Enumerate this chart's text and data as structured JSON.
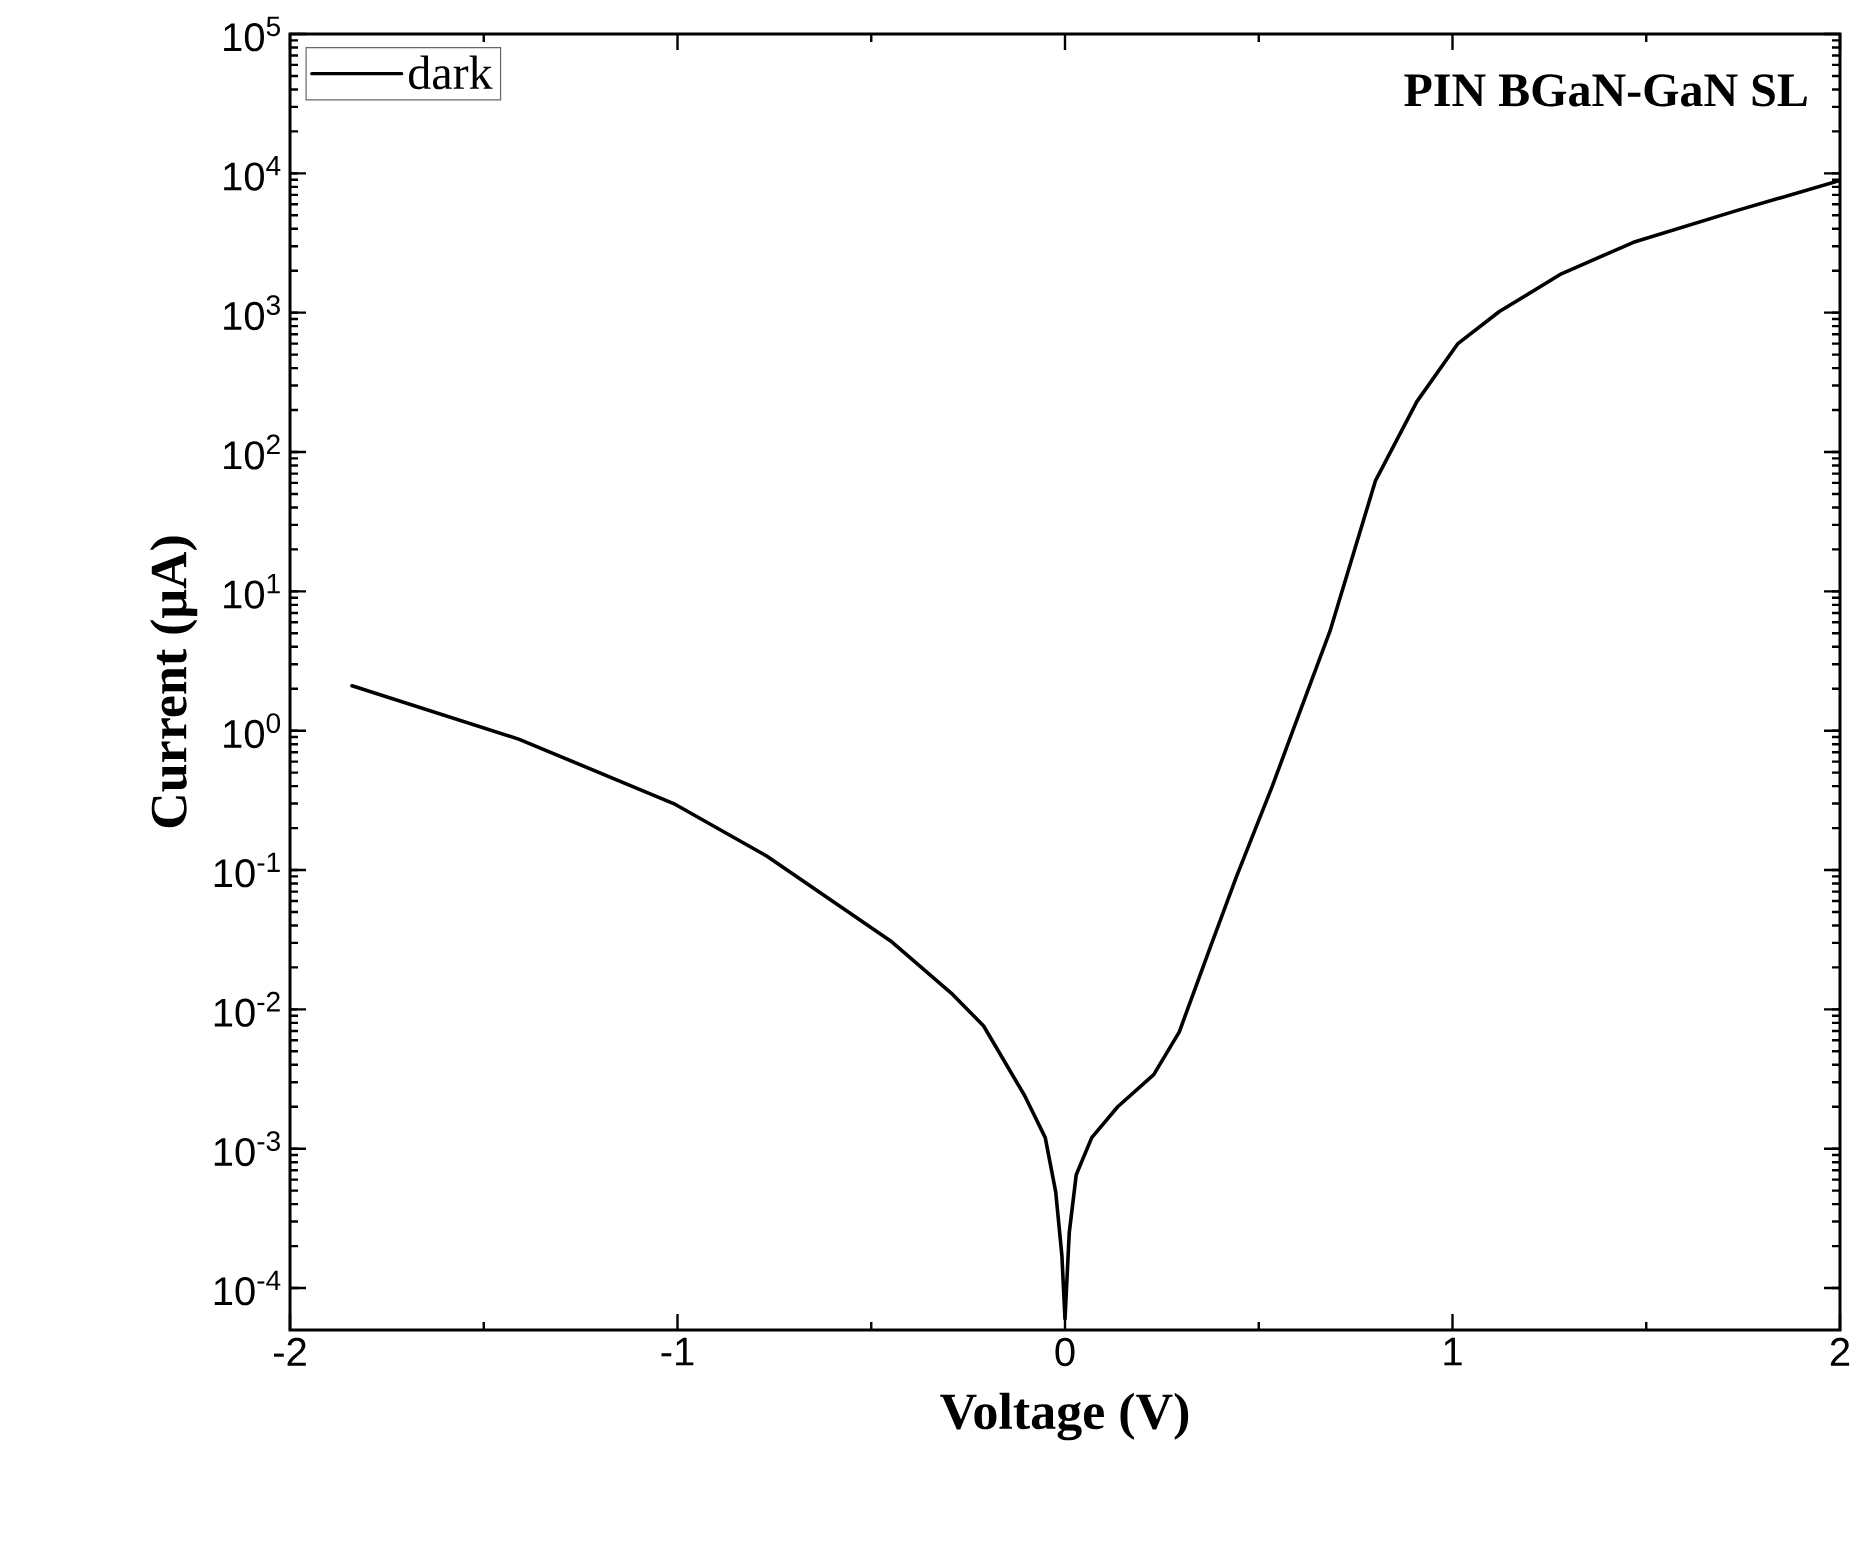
{
  "chart_data": {
    "type": "line",
    "title": "PIN BGaN-GaN SL",
    "xlabel": "Voltage (V)",
    "ylabel": "Current (μA)",
    "log": "y",
    "legend": "top left",
    "marker": "none",
    "line_style": "solid",
    "grid": false,
    "xlim": [
      -2,
      2
    ],
    "xticks": [
      -2,
      -1,
      0,
      1,
      2
    ],
    "ylim": [
      5e-05,
      100000
    ],
    "yticks": [
      {
        "value": 0.0001,
        "label": "10$^{-4}$"
      },
      {
        "value": 0.001,
        "label": "10$^{-3}$"
      },
      {
        "value": 0.01,
        "label": "10$^{-2}$"
      },
      {
        "value": 0.1,
        "label": "10$^{-1}$"
      },
      {
        "value": 1,
        "label": "10$^{0}$"
      },
      {
        "value": 10,
        "label": "10$^{1}$"
      },
      {
        "value": 100,
        "label": "10$^{2}$"
      },
      {
        "value": 1000,
        "label": "10$^{3}$"
      },
      {
        "value": 10000,
        "label": "10$^{4}$"
      },
      {
        "value": 100000,
        "label": "10$^{5}$"
      }
    ],
    "series": [
      {
        "name": "dark",
        "color": "#000000",
        "x": [
          -1.84,
          -1.41,
          -1.01,
          -0.77,
          -0.45,
          -0.29,
          -0.21,
          -0.104,
          -0.051,
          -0.024,
          -0.008,
          0,
          0.011,
          0.029,
          0.069,
          0.136,
          0.229,
          0.295,
          0.375,
          0.442,
          0.535,
          0.588,
          0.684,
          0.801,
          0.908,
          1.014,
          1.121,
          1.281,
          1.467,
          1.733,
          2.0
        ],
        "values": [
          2.1,
          0.87,
          0.3,
          0.126,
          0.031,
          0.0128,
          0.0076,
          0.0024,
          0.0012,
          0.00049,
          0.00017,
          6e-05,
          0.00025,
          0.00065,
          0.0012,
          0.002,
          0.0034,
          0.0069,
          0.028,
          0.089,
          0.4,
          1.0,
          5.2,
          62,
          230,
          600,
          1020,
          1900,
          3200,
          5400,
          8900
        ]
      }
    ]
  }
}
